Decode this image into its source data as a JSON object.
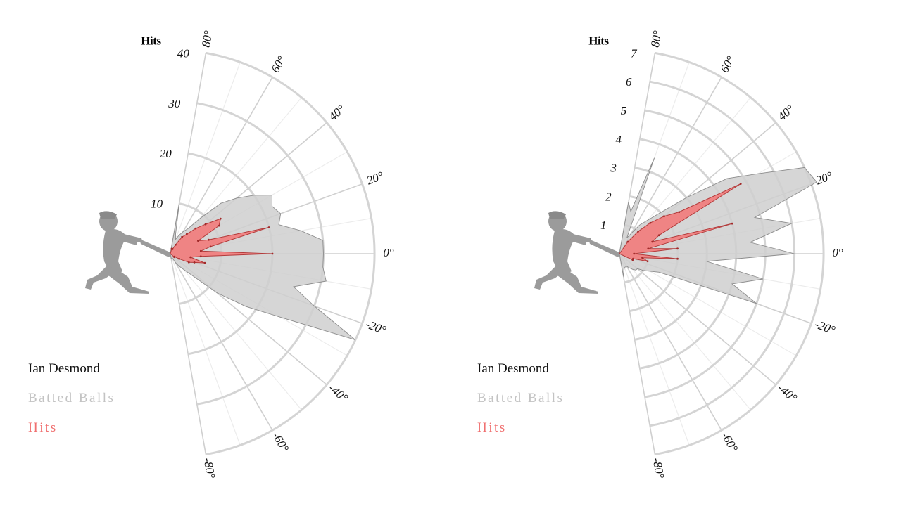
{
  "chart_data": [
    {
      "type": "radial-area",
      "r_axis_title": "Hits",
      "r_ticks": [
        10,
        20,
        30,
        40
      ],
      "r_max": 40,
      "angle_unit": "degrees",
      "angle_range": [
        -80,
        80
      ],
      "angle_ticks": [
        -80,
        -60,
        -40,
        -20,
        0,
        20,
        40,
        60,
        80
      ],
      "angle_tick_labels": [
        "-80°",
        "-60°",
        "-40°",
        "-20°",
        "0°",
        "20°",
        "40°",
        "60°",
        "80°"
      ],
      "legend": {
        "player": "Ian Desmond",
        "batted": "Batted Balls",
        "hits": "Hits"
      },
      "angles": [
        80,
        75,
        70,
        65,
        60,
        55,
        50,
        45,
        40,
        35,
        30,
        25,
        20,
        15,
        10,
        5,
        0,
        -5,
        -10,
        -15,
        -20,
        -25,
        -30,
        -35,
        -40,
        -45,
        -50,
        -55,
        -60,
        -65,
        -70,
        -75,
        -80
      ],
      "series": [
        {
          "name": "Batted Balls",
          "color": "#cfcfcf",
          "values": [
            10,
            4,
            3,
            4,
            5,
            6,
            9,
            14,
            17,
            20,
            23,
            22,
            23,
            22,
            26,
            30,
            30,
            30,
            31,
            25,
            30,
            40,
            25,
            18,
            12,
            6,
            4,
            3,
            2,
            1,
            1,
            1,
            1
          ]
        },
        {
          "name": "Hits",
          "color": "#f08080",
          "values": [
            0,
            1,
            1,
            1,
            2,
            4,
            5,
            7,
            9,
            12,
            11,
            6,
            8,
            20,
            8,
            6,
            20,
            6,
            4,
            7,
            5,
            4,
            2,
            1,
            1,
            0,
            0,
            0,
            0,
            0,
            0,
            0,
            0
          ]
        }
      ]
    },
    {
      "type": "radial-area",
      "r_axis_title": "Hits",
      "r_ticks": [
        1,
        2,
        3,
        4,
        5,
        6,
        7
      ],
      "r_max": 7,
      "angle_unit": "degrees",
      "angle_range": [
        -80,
        80
      ],
      "angle_ticks": [
        -80,
        -60,
        -40,
        -20,
        0,
        20,
        40,
        60,
        80
      ],
      "angle_tick_labels": [
        "-80°",
        "-60°",
        "-40°",
        "-20°",
        "0°",
        "20°",
        "40°",
        "60°",
        "80°"
      ],
      "legend": {
        "player": "Ian Desmond",
        "batted": "Batted Balls",
        "hits": "Hits"
      },
      "angles": [
        80,
        75,
        70,
        65,
        60,
        55,
        50,
        45,
        40,
        35,
        30,
        25,
        20,
        15,
        10,
        5,
        0,
        -5,
        -10,
        -15,
        -20,
        -25,
        -30,
        -35,
        -40,
        -45,
        -50,
        -55,
        -60,
        -65,
        -70,
        -75,
        -80
      ],
      "series": [
        {
          "name": "Batted Balls",
          "color": "#cfcfcf",
          "values": [
            1.8,
            1.5,
            3.5,
            0.6,
            0.8,
            1.2,
            1.5,
            2.0,
            3.0,
            4.5,
            5.5,
            7.0,
            7.2,
            4.8,
            6.0,
            4.5,
            6.0,
            3.0,
            5.0,
            4.0,
            5.0,
            1.5,
            1.2,
            1.0,
            0.8,
            0.8,
            0.7,
            0.6,
            0.5,
            0.5,
            0.5,
            0.6,
            0.8
          ]
        },
        {
          "name": "Hits",
          "color": "#f08080",
          "values": [
            0,
            0,
            0,
            0,
            0,
            0.5,
            1.0,
            1.5,
            2.0,
            2.5,
            4.8,
            1.5,
            1.2,
            4.0,
            1.0,
            2.0,
            0.5,
            2.0,
            0.8,
            1.0,
            0.5,
            0.5,
            0,
            0,
            0,
            0,
            0,
            0,
            0,
            0,
            0,
            0,
            0
          ]
        }
      ]
    }
  ]
}
